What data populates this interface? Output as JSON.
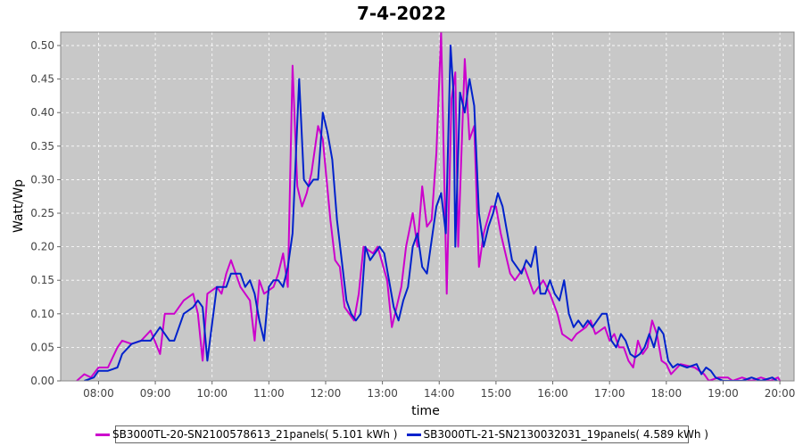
{
  "chart_data": {
    "type": "line",
    "title": "7-4-2022",
    "xlabel": "time",
    "ylabel": "Watt/Wp",
    "xlim": [
      "07:20",
      "20:15"
    ],
    "ylim": [
      0,
      0.52
    ],
    "grid": true,
    "legend_position": "bottom",
    "x_ticks": [
      "08:00",
      "09:00",
      "10:00",
      "11:00",
      "12:00",
      "13:00",
      "14:00",
      "15:00",
      "16:00",
      "17:00",
      "18:00",
      "19:00",
      "20:00"
    ],
    "y_ticks": [
      "0.00",
      "0.05",
      "0.10",
      "0.15",
      "0.20",
      "0.25",
      "0.30",
      "0.35",
      "0.40",
      "0.45",
      "0.50"
    ],
    "series": [
      {
        "name": "SB3000TL-20-SN2100578613_21panels( 5.101 kWh )",
        "color": "#cc00cc",
        "points": [
          [
            "07:37",
            0.0
          ],
          [
            "07:45",
            0.01
          ],
          [
            "07:52",
            0.005
          ],
          [
            "08:00",
            0.02
          ],
          [
            "08:10",
            0.02
          ],
          [
            "08:20",
            0.05
          ],
          [
            "08:25",
            0.06
          ],
          [
            "08:35",
            0.055
          ],
          [
            "08:45",
            0.06
          ],
          [
            "08:55",
            0.075
          ],
          [
            "09:05",
            0.04
          ],
          [
            "09:10",
            0.1
          ],
          [
            "09:20",
            0.1
          ],
          [
            "09:30",
            0.12
          ],
          [
            "09:40",
            0.13
          ],
          [
            "09:45",
            0.1
          ],
          [
            "09:50",
            0.03
          ],
          [
            "09:55",
            0.13
          ],
          [
            "10:05",
            0.14
          ],
          [
            "10:10",
            0.13
          ],
          [
            "10:15",
            0.16
          ],
          [
            "10:20",
            0.18
          ],
          [
            "10:30",
            0.14
          ],
          [
            "10:35",
            0.13
          ],
          [
            "10:40",
            0.12
          ],
          [
            "10:45",
            0.06
          ],
          [
            "10:50",
            0.15
          ],
          [
            "10:55",
            0.13
          ],
          [
            "11:05",
            0.14
          ],
          [
            "11:10",
            0.16
          ],
          [
            "11:15",
            0.19
          ],
          [
            "11:20",
            0.14
          ],
          [
            "11:25",
            0.47
          ],
          [
            "11:30",
            0.29
          ],
          [
            "11:35",
            0.26
          ],
          [
            "11:40",
            0.28
          ],
          [
            "11:45",
            0.31
          ],
          [
            "11:52",
            0.38
          ],
          [
            "11:57",
            0.36
          ],
          [
            "12:05",
            0.24
          ],
          [
            "12:10",
            0.18
          ],
          [
            "12:15",
            0.17
          ],
          [
            "12:20",
            0.11
          ],
          [
            "12:30",
            0.09
          ],
          [
            "12:35",
            0.13
          ],
          [
            "12:40",
            0.2
          ],
          [
            "12:50",
            0.19
          ],
          [
            "12:55",
            0.2
          ],
          [
            "13:05",
            0.15
          ],
          [
            "13:10",
            0.08
          ],
          [
            "13:15",
            0.11
          ],
          [
            "13:20",
            0.14
          ],
          [
            "13:25",
            0.2
          ],
          [
            "13:32",
            0.25
          ],
          [
            "13:37",
            0.2
          ],
          [
            "13:42",
            0.29
          ],
          [
            "13:47",
            0.23
          ],
          [
            "13:52",
            0.24
          ],
          [
            "13:57",
            0.34
          ],
          [
            "14:02",
            0.52
          ],
          [
            "14:08",
            0.13
          ],
          [
            "14:13",
            0.42
          ],
          [
            "14:17",
            0.46
          ],
          [
            "14:20",
            0.2
          ],
          [
            "14:27",
            0.48
          ],
          [
            "14:32",
            0.36
          ],
          [
            "14:37",
            0.38
          ],
          [
            "14:42",
            0.17
          ],
          [
            "14:47",
            0.22
          ],
          [
            "14:55",
            0.26
          ],
          [
            "15:00",
            0.26
          ],
          [
            "15:05",
            0.22
          ],
          [
            "15:10",
            0.19
          ],
          [
            "15:15",
            0.16
          ],
          [
            "15:20",
            0.15
          ],
          [
            "15:30",
            0.17
          ],
          [
            "15:40",
            0.13
          ],
          [
            "15:50",
            0.15
          ],
          [
            "15:57",
            0.13
          ],
          [
            "16:05",
            0.1
          ],
          [
            "16:10",
            0.07
          ],
          [
            "16:20",
            0.06
          ],
          [
            "16:25",
            0.07
          ],
          [
            "16:35",
            0.08
          ],
          [
            "16:40",
            0.09
          ],
          [
            "16:45",
            0.07
          ],
          [
            "16:55",
            0.08
          ],
          [
            "17:00",
            0.06
          ],
          [
            "17:05",
            0.07
          ],
          [
            "17:10",
            0.05
          ],
          [
            "17:15",
            0.05
          ],
          [
            "17:20",
            0.03
          ],
          [
            "17:25",
            0.02
          ],
          [
            "17:30",
            0.06
          ],
          [
            "17:35",
            0.04
          ],
          [
            "17:40",
            0.05
          ],
          [
            "17:45",
            0.09
          ],
          [
            "17:50",
            0.07
          ],
          [
            "17:55",
            0.03
          ],
          [
            "18:00",
            0.025
          ],
          [
            "18:05",
            0.01
          ],
          [
            "18:15",
            0.025
          ],
          [
            "18:30",
            0.02
          ],
          [
            "18:40",
            0.01
          ],
          [
            "18:45",
            0.0
          ],
          [
            "18:55",
            0.005
          ],
          [
            "19:05",
            0.005
          ],
          [
            "19:10",
            0.0
          ],
          [
            "19:20",
            0.005
          ],
          [
            "19:30",
            0.0
          ],
          [
            "19:40",
            0.005
          ],
          [
            "19:50",
            0.0
          ],
          [
            "19:58",
            0.005
          ],
          [
            "20:00",
            0.0
          ]
        ]
      },
      {
        "name": "SB3000TL-21-SN2130032031_19panels( 4.589 kWh )",
        "color": "#0022cc",
        "points": [
          [
            "07:45",
            0.0
          ],
          [
            "07:55",
            0.005
          ],
          [
            "08:00",
            0.015
          ],
          [
            "08:10",
            0.015
          ],
          [
            "08:20",
            0.02
          ],
          [
            "08:25",
            0.04
          ],
          [
            "08:35",
            0.055
          ],
          [
            "08:45",
            0.06
          ],
          [
            "08:55",
            0.06
          ],
          [
            "09:05",
            0.08
          ],
          [
            "09:15",
            0.06
          ],
          [
            "09:20",
            0.06
          ],
          [
            "09:30",
            0.1
          ],
          [
            "09:40",
            0.11
          ],
          [
            "09:45",
            0.12
          ],
          [
            "09:50",
            0.11
          ],
          [
            "09:55",
            0.03
          ],
          [
            "10:05",
            0.14
          ],
          [
            "10:15",
            0.14
          ],
          [
            "10:20",
            0.16
          ],
          [
            "10:30",
            0.16
          ],
          [
            "10:35",
            0.14
          ],
          [
            "10:40",
            0.15
          ],
          [
            "10:45",
            0.13
          ],
          [
            "10:50",
            0.09
          ],
          [
            "10:55",
            0.06
          ],
          [
            "11:00",
            0.14
          ],
          [
            "11:05",
            0.15
          ],
          [
            "11:10",
            0.15
          ],
          [
            "11:15",
            0.14
          ],
          [
            "11:20",
            0.17
          ],
          [
            "11:25",
            0.22
          ],
          [
            "11:32",
            0.45
          ],
          [
            "11:37",
            0.3
          ],
          [
            "11:42",
            0.29
          ],
          [
            "11:47",
            0.3
          ],
          [
            "11:52",
            0.3
          ],
          [
            "11:57",
            0.4
          ],
          [
            "12:02",
            0.37
          ],
          [
            "12:07",
            0.33
          ],
          [
            "12:12",
            0.24
          ],
          [
            "12:17",
            0.18
          ],
          [
            "12:22",
            0.12
          ],
          [
            "12:27",
            0.1
          ],
          [
            "12:32",
            0.09
          ],
          [
            "12:37",
            0.1
          ],
          [
            "12:42",
            0.2
          ],
          [
            "12:47",
            0.18
          ],
          [
            "12:52",
            0.19
          ],
          [
            "12:57",
            0.2
          ],
          [
            "13:02",
            0.19
          ],
          [
            "13:07",
            0.15
          ],
          [
            "13:12",
            0.11
          ],
          [
            "13:17",
            0.09
          ],
          [
            "13:22",
            0.12
          ],
          [
            "13:27",
            0.14
          ],
          [
            "13:32",
            0.2
          ],
          [
            "13:37",
            0.22
          ],
          [
            "13:42",
            0.17
          ],
          [
            "13:47",
            0.16
          ],
          [
            "13:52",
            0.21
          ],
          [
            "13:57",
            0.26
          ],
          [
            "14:02",
            0.28
          ],
          [
            "14:07",
            0.22
          ],
          [
            "14:12",
            0.5
          ],
          [
            "14:15",
            0.43
          ],
          [
            "14:17",
            0.2
          ],
          [
            "14:22",
            0.43
          ],
          [
            "14:27",
            0.4
          ],
          [
            "14:32",
            0.45
          ],
          [
            "14:37",
            0.41
          ],
          [
            "14:42",
            0.25
          ],
          [
            "14:47",
            0.2
          ],
          [
            "14:52",
            0.23
          ],
          [
            "14:57",
            0.25
          ],
          [
            "15:02",
            0.28
          ],
          [
            "15:07",
            0.26
          ],
          [
            "15:12",
            0.22
          ],
          [
            "15:17",
            0.18
          ],
          [
            "15:22",
            0.17
          ],
          [
            "15:27",
            0.16
          ],
          [
            "15:32",
            0.18
          ],
          [
            "15:37",
            0.17
          ],
          [
            "15:42",
            0.2
          ],
          [
            "15:47",
            0.13
          ],
          [
            "15:52",
            0.13
          ],
          [
            "15:57",
            0.15
          ],
          [
            "16:02",
            0.13
          ],
          [
            "16:07",
            0.12
          ],
          [
            "16:12",
            0.15
          ],
          [
            "16:17",
            0.1
          ],
          [
            "16:22",
            0.08
          ],
          [
            "16:27",
            0.09
          ],
          [
            "16:32",
            0.08
          ],
          [
            "16:37",
            0.09
          ],
          [
            "16:42",
            0.08
          ],
          [
            "16:47",
            0.09
          ],
          [
            "16:52",
            0.1
          ],
          [
            "16:57",
            0.1
          ],
          [
            "17:02",
            0.06
          ],
          [
            "17:07",
            0.05
          ],
          [
            "17:12",
            0.07
          ],
          [
            "17:17",
            0.06
          ],
          [
            "17:22",
            0.04
          ],
          [
            "17:27",
            0.035
          ],
          [
            "17:32",
            0.04
          ],
          [
            "17:37",
            0.05
          ],
          [
            "17:42",
            0.07
          ],
          [
            "17:47",
            0.05
          ],
          [
            "17:52",
            0.08
          ],
          [
            "17:57",
            0.07
          ],
          [
            "18:02",
            0.03
          ],
          [
            "18:07",
            0.02
          ],
          [
            "18:12",
            0.025
          ],
          [
            "18:22",
            0.02
          ],
          [
            "18:32",
            0.025
          ],
          [
            "18:37",
            0.01
          ],
          [
            "18:42",
            0.02
          ],
          [
            "18:47",
            0.015
          ],
          [
            "18:52",
            0.005
          ],
          [
            "19:00",
            0.0
          ],
          [
            "19:20",
            0.0
          ],
          [
            "19:30",
            0.005
          ],
          [
            "19:40",
            0.0
          ],
          [
            "19:52",
            0.005
          ],
          [
            "19:57",
            0.0
          ]
        ]
      }
    ]
  },
  "legend": {
    "items": [
      {
        "label": "SB3000TL-20-SN2100578613_21panels( 5.101 kWh )",
        "color": "#cc00cc"
      },
      {
        "label": "SB3000TL-21-SN2130032031_19panels( 4.589 kWh )",
        "color": "#0022cc"
      }
    ]
  }
}
